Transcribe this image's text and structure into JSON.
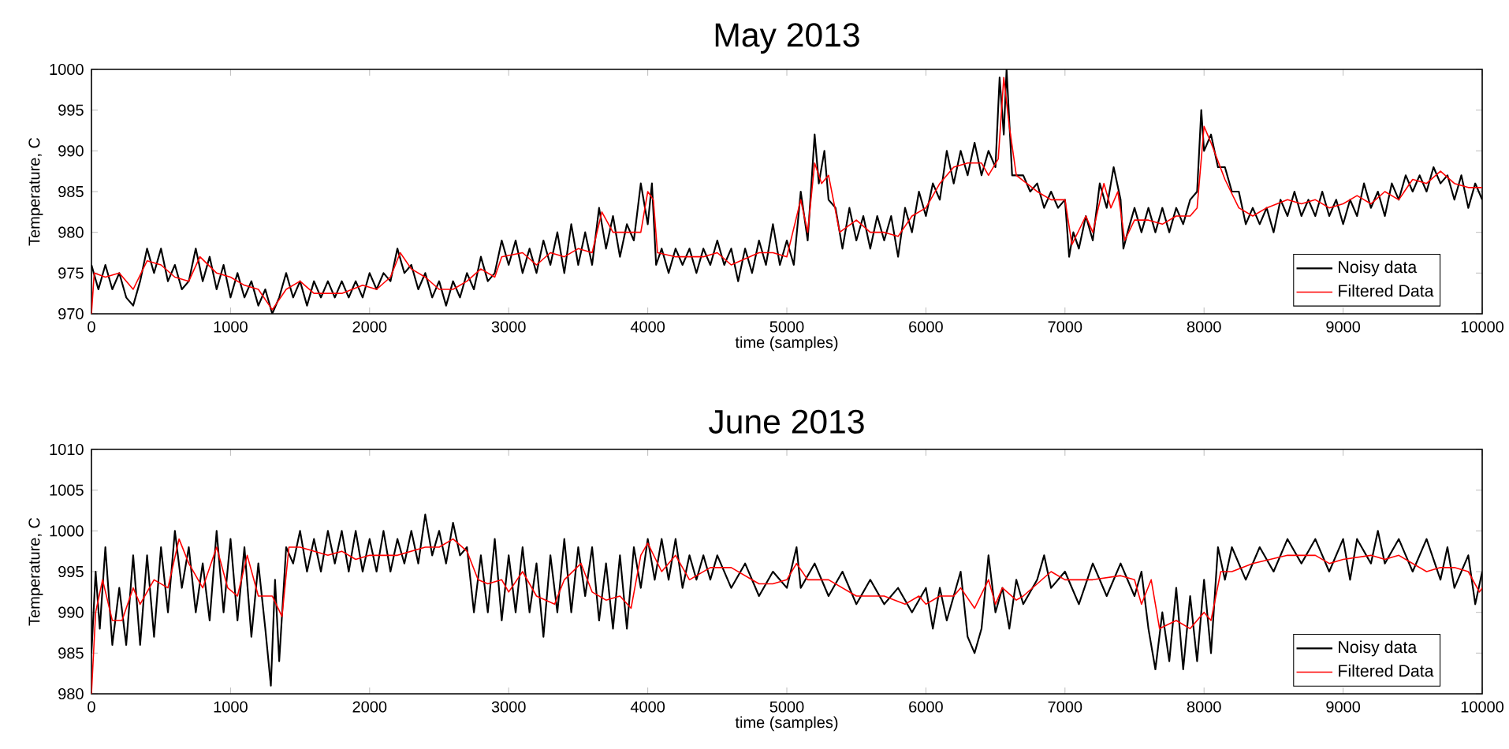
{
  "chart_data": [
    {
      "type": "line",
      "title": "May 2013",
      "xlabel": "time (samples)",
      "ylabel": "Temperature, C",
      "xlim": [
        0,
        10000
      ],
      "ylim": [
        970,
        1000
      ],
      "xticks": [
        0,
        1000,
        2000,
        3000,
        4000,
        5000,
        6000,
        7000,
        8000,
        9000,
        10000
      ],
      "yticks": [
        970,
        975,
        980,
        985,
        990,
        995,
        1000
      ],
      "legend": "bottom right",
      "series": [
        {
          "name": "Noisy data",
          "color": "#000000",
          "x": [
            0,
            50,
            100,
            150,
            200,
            250,
            300,
            350,
            400,
            450,
            500,
            550,
            600,
            650,
            700,
            750,
            800,
            850,
            900,
            950,
            1000,
            1050,
            1100,
            1150,
            1200,
            1250,
            1300,
            1350,
            1400,
            1450,
            1500,
            1550,
            1600,
            1650,
            1700,
            1750,
            1800,
            1850,
            1900,
            1950,
            2000,
            2050,
            2100,
            2150,
            2200,
            2250,
            2300,
            2350,
            2400,
            2450,
            2500,
            2550,
            2600,
            2650,
            2700,
            2750,
            2800,
            2850,
            2900,
            2950,
            3000,
            3050,
            3100,
            3150,
            3200,
            3250,
            3300,
            3350,
            3400,
            3450,
            3500,
            3550,
            3600,
            3650,
            3700,
            3750,
            3800,
            3850,
            3900,
            3950,
            4000,
            4030,
            4060,
            4100,
            4150,
            4200,
            4250,
            4300,
            4350,
            4400,
            4450,
            4500,
            4550,
            4600,
            4650,
            4700,
            4750,
            4800,
            4850,
            4900,
            4950,
            5000,
            5050,
            5100,
            5150,
            5200,
            5230,
            5270,
            5300,
            5350,
            5400,
            5450,
            5500,
            5550,
            5600,
            5650,
            5700,
            5750,
            5800,
            5850,
            5900,
            5950,
            6000,
            6050,
            6100,
            6150,
            6200,
            6250,
            6300,
            6350,
            6400,
            6450,
            6500,
            6530,
            6560,
            6580,
            6620,
            6700,
            6750,
            6800,
            6850,
            6900,
            6950,
            7000,
            7030,
            7060,
            7100,
            7150,
            7200,
            7250,
            7300,
            7350,
            7400,
            7420,
            7450,
            7500,
            7550,
            7600,
            7650,
            7700,
            7750,
            7800,
            7850,
            7900,
            7950,
            7980,
            8000,
            8050,
            8100,
            8150,
            8200,
            8250,
            8300,
            8350,
            8400,
            8450,
            8500,
            8550,
            8600,
            8650,
            8700,
            8750,
            8800,
            8850,
            8900,
            8950,
            9000,
            9050,
            9100,
            9150,
            9200,
            9250,
            9300,
            9350,
            9400,
            9450,
            9500,
            9550,
            9600,
            9650,
            9700,
            9750,
            9800,
            9850,
            9900,
            9950,
            10000
          ],
          "values": [
            976,
            973,
            976,
            973,
            975,
            972,
            971,
            974,
            978,
            975,
            978,
            974,
            976,
            973,
            974,
            978,
            974,
            977,
            973,
            976,
            972,
            975,
            972,
            974,
            971,
            973,
            970,
            972,
            975,
            972,
            974,
            971,
            974,
            972,
            974,
            972,
            974,
            972,
            974,
            972,
            975,
            973,
            975,
            974,
            978,
            975,
            976,
            973,
            975,
            972,
            974,
            971,
            974,
            972,
            975,
            973,
            977,
            974,
            975,
            979,
            976,
            979,
            975,
            978,
            975,
            979,
            976,
            980,
            975,
            981,
            976,
            980,
            976,
            983,
            978,
            982,
            977,
            981,
            979,
            986,
            981,
            986,
            976,
            978,
            975,
            978,
            976,
            978,
            975,
            978,
            976,
            979,
            976,
            978,
            974,
            978,
            975,
            979,
            976,
            981,
            976,
            979,
            976,
            985,
            979,
            992,
            986,
            990,
            984,
            983,
            978,
            983,
            979,
            982,
            978,
            982,
            979,
            982,
            977,
            983,
            980,
            985,
            982,
            986,
            984,
            990,
            986,
            990,
            987,
            991,
            987,
            990,
            988,
            999,
            992,
            1000,
            987,
            987,
            985,
            986,
            983,
            985,
            983,
            984,
            977,
            980,
            978,
            982,
            979,
            986,
            983,
            988,
            984,
            978,
            980,
            983,
            980,
            983,
            980,
            983,
            980,
            983,
            981,
            984,
            985,
            995,
            990,
            992,
            988,
            988,
            985,
            985,
            981,
            983,
            981,
            983,
            980,
            984,
            982,
            985,
            982,
            984,
            982,
            985,
            982,
            984,
            981,
            984,
            982,
            986,
            983,
            985,
            982,
            986,
            984,
            987,
            985,
            987,
            985,
            988,
            986,
            987,
            984,
            987,
            983,
            986,
            984
          ]
        },
        {
          "name": "Filtered Data",
          "color": "#ff0000",
          "x": [
            0,
            20,
            100,
            200,
            300,
            400,
            500,
            600,
            700,
            780,
            900,
            1000,
            1100,
            1200,
            1300,
            1400,
            1500,
            1600,
            1800,
            1950,
            2050,
            2150,
            2220,
            2300,
            2400,
            2500,
            2600,
            2700,
            2800,
            2900,
            2950,
            3100,
            3200,
            3300,
            3400,
            3500,
            3600,
            3670,
            3750,
            3850,
            3950,
            4000,
            4040,
            4070,
            4200,
            4400,
            4500,
            4600,
            4800,
            4900,
            5000,
            5100,
            5150,
            5200,
            5250,
            5300,
            5380,
            5500,
            5600,
            5700,
            5800,
            5900,
            6000,
            6100,
            6200,
            6300,
            6400,
            6450,
            6520,
            6560,
            6600,
            6650,
            6800,
            6900,
            7000,
            7050,
            7150,
            7200,
            7280,
            7330,
            7380,
            7430,
            7500,
            7600,
            7700,
            7800,
            7900,
            7950,
            8000,
            8050,
            8150,
            8250,
            8350,
            8450,
            8600,
            8700,
            8800,
            8900,
            9000,
            9100,
            9200,
            9300,
            9400,
            9500,
            9600,
            9700,
            9800,
            9900,
            10000
          ],
          "values": [
            970,
            975,
            974.5,
            975,
            973,
            976.5,
            976,
            974.5,
            974,
            977,
            975,
            974.5,
            973.5,
            973,
            970.5,
            973,
            974,
            972.5,
            972.5,
            973.5,
            973,
            974.5,
            977.5,
            975.5,
            974.5,
            973,
            973,
            974,
            975.5,
            974.5,
            977,
            977.5,
            976,
            977.5,
            977,
            978,
            977.5,
            982.5,
            980,
            980,
            980,
            985,
            984,
            977.5,
            977,
            977,
            977.5,
            976,
            977.5,
            977.5,
            977,
            984,
            980,
            988.5,
            986,
            987,
            980,
            981.5,
            980,
            980,
            979.5,
            982,
            983,
            986,
            988,
            988.5,
            988.5,
            987,
            989,
            999,
            993,
            987,
            985,
            984,
            984,
            978.5,
            982,
            980,
            986,
            983,
            985,
            979,
            981.5,
            981.5,
            981,
            982,
            982,
            983,
            993,
            991,
            986.5,
            983,
            982,
            983,
            984,
            983.5,
            984,
            983,
            983.5,
            984.5,
            983.5,
            985,
            984,
            986.5,
            986,
            987.5,
            986,
            985.5,
            985.5
          ]
        }
      ]
    },
    {
      "type": "line",
      "title": "June 2013",
      "xlabel": "time (samples)",
      "ylabel": "Temperature, C",
      "xlim": [
        0,
        10000
      ],
      "ylim": [
        980,
        1010
      ],
      "xticks": [
        0,
        1000,
        2000,
        3000,
        4000,
        5000,
        6000,
        7000,
        8000,
        9000,
        10000
      ],
      "yticks": [
        980,
        985,
        990,
        995,
        1000,
        1005,
        1010
      ],
      "legend": "bottom right",
      "series": [
        {
          "name": "Noisy data",
          "color": "#000000",
          "x": [
            0,
            30,
            60,
            100,
            150,
            200,
            250,
            300,
            350,
            400,
            450,
            500,
            550,
            600,
            650,
            700,
            750,
            800,
            850,
            900,
            950,
            1000,
            1050,
            1100,
            1150,
            1200,
            1250,
            1290,
            1320,
            1350,
            1400,
            1450,
            1500,
            1550,
            1600,
            1650,
            1700,
            1750,
            1800,
            1850,
            1900,
            1950,
            2000,
            2050,
            2100,
            2150,
            2200,
            2250,
            2300,
            2350,
            2400,
            2450,
            2500,
            2550,
            2600,
            2650,
            2700,
            2750,
            2800,
            2850,
            2900,
            2950,
            3000,
            3050,
            3100,
            3150,
            3200,
            3250,
            3300,
            3350,
            3400,
            3450,
            3500,
            3550,
            3600,
            3650,
            3700,
            3750,
            3800,
            3850,
            3900,
            3950,
            4000,
            4050,
            4100,
            4150,
            4200,
            4250,
            4300,
            4350,
            4400,
            4450,
            4500,
            4600,
            4700,
            4800,
            4900,
            5000,
            5070,
            5100,
            5200,
            5300,
            5400,
            5500,
            5600,
            5700,
            5800,
            5900,
            6000,
            6050,
            6100,
            6150,
            6250,
            6300,
            6350,
            6400,
            6450,
            6500,
            6550,
            6600,
            6650,
            6700,
            6800,
            6850,
            6900,
            7000,
            7100,
            7200,
            7300,
            7400,
            7500,
            7550,
            7600,
            7650,
            7700,
            7750,
            7800,
            7850,
            7900,
            7950,
            8000,
            8050,
            8100,
            8150,
            8200,
            8300,
            8400,
            8500,
            8600,
            8700,
            8800,
            8900,
            9000,
            9050,
            9100,
            9200,
            9250,
            9300,
            9400,
            9500,
            9600,
            9700,
            9750,
            9800,
            9900,
            9950,
            10000
          ],
          "values": [
            985,
            995,
            988,
            998,
            986,
            993,
            986,
            997,
            986,
            997,
            987,
            998,
            990,
            1000,
            993,
            998,
            990,
            996,
            989,
            1000,
            990,
            999,
            989,
            998,
            987,
            996,
            988,
            981,
            994,
            984,
            998,
            996,
            1000,
            995,
            999,
            995,
            1000,
            996,
            1000,
            995,
            1000,
            995,
            999,
            995,
            1000,
            995,
            999,
            996,
            1000,
            996,
            1002,
            997,
            1000,
            996,
            1001,
            997,
            998,
            990,
            997,
            990,
            999,
            989,
            997,
            990,
            998,
            990,
            996,
            987,
            997,
            990,
            999,
            990,
            998,
            992,
            998,
            989,
            996,
            988,
            997,
            988,
            998,
            993,
            999,
            994,
            999,
            994,
            999,
            993,
            997,
            994,
            997,
            994,
            997,
            993,
            996,
            992,
            995,
            993,
            998,
            993,
            996,
            992,
            995,
            991,
            994,
            991,
            993,
            990,
            993,
            988,
            993,
            989,
            995,
            987,
            985,
            988,
            997,
            990,
            993,
            988,
            994,
            991,
            994,
            997,
            993,
            995,
            991,
            996,
            992,
            996,
            992,
            995,
            988,
            983,
            990,
            984,
            993,
            983,
            992,
            984,
            994,
            985,
            998,
            994,
            998,
            994,
            998,
            995,
            999,
            996,
            999,
            995,
            999,
            994,
            999,
            996,
            1000,
            996,
            999,
            995,
            999,
            994,
            998,
            993,
            997,
            991,
            995
          ]
        },
        {
          "name": "Filtered Data",
          "color": "#ff0000",
          "x": [
            0,
            30,
            80,
            150,
            220,
            300,
            350,
            450,
            550,
            630,
            700,
            800,
            900,
            980,
            1050,
            1120,
            1200,
            1300,
            1370,
            1420,
            1500,
            1700,
            1800,
            1900,
            2000,
            2200,
            2400,
            2500,
            2600,
            2700,
            2780,
            2850,
            2950,
            3000,
            3100,
            3200,
            3330,
            3400,
            3520,
            3600,
            3700,
            3800,
            3880,
            3950,
            4000,
            4100,
            4200,
            4300,
            4450,
            4600,
            4800,
            4900,
            5000,
            5070,
            5150,
            5300,
            5500,
            5700,
            5850,
            5950,
            6000,
            6100,
            6200,
            6250,
            6350,
            6450,
            6500,
            6550,
            6650,
            6700,
            6900,
            7000,
            7200,
            7400,
            7500,
            7550,
            7620,
            7680,
            7800,
            7900,
            8000,
            8050,
            8120,
            8200,
            8350,
            8600,
            8800,
            8900,
            9000,
            9200,
            9300,
            9400,
            9500,
            9600,
            9700,
            9800,
            9900,
            9980,
            10000
          ],
          "values": [
            980,
            990,
            994,
            989,
            989,
            993,
            991,
            994,
            993,
            999,
            996,
            993,
            998,
            993,
            992,
            997,
            992,
            992,
            989.5,
            998,
            998,
            997,
            997.5,
            996.5,
            997,
            997,
            998,
            998,
            999,
            997.5,
            994,
            993.5,
            994,
            992.5,
            995,
            992,
            991,
            994,
            996,
            992.5,
            991.5,
            992,
            990.5,
            997,
            998.5,
            995,
            997,
            994,
            995.5,
            995.5,
            993.5,
            993.5,
            994,
            996,
            994,
            994,
            992,
            992,
            991,
            992,
            991,
            992,
            992,
            993,
            990.5,
            994,
            991,
            993,
            991.5,
            992,
            995,
            994,
            994,
            994.5,
            994,
            991,
            994,
            988,
            989,
            988,
            990,
            989,
            995,
            995,
            996,
            997,
            997,
            996,
            996.5,
            997,
            996.5,
            997,
            996,
            995,
            995.5,
            995.5,
            995,
            992.5,
            993
          ]
        }
      ]
    }
  ]
}
